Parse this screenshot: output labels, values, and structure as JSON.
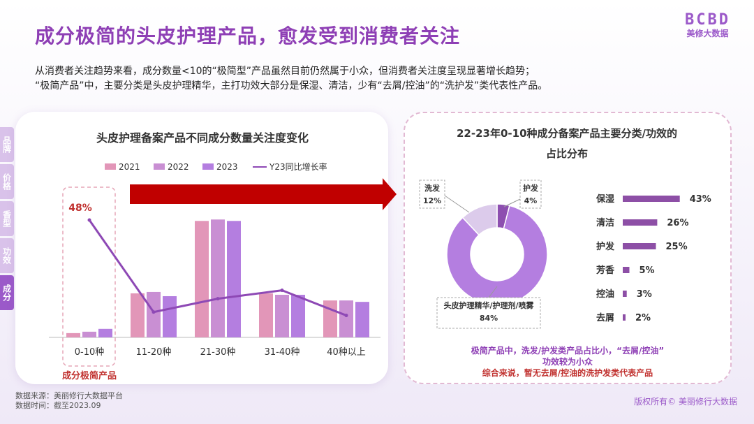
{
  "title": "成分极简的头皮护理产品，愈发受到消费者关注",
  "logo": {
    "mark": "BCBD",
    "sub": "美修大数据"
  },
  "intro": {
    "line1": "从消费者关注趋势来看，成分数量<10的“极简型”产品虽然目前仍然属于小众，但消费者关注度呈现显著增长趋势；",
    "line2": "“极简产品”中，主要分类是头皮护理精华，主打功效大部分是保湿、清洁，少有“去屑/控油”的“洗护发”类代表性产品。"
  },
  "side_tabs": [
    "品牌",
    "价格",
    "香型",
    "功效",
    "成分"
  ],
  "footer": {
    "source": "数据来源：美丽修行大数据平台",
    "time": "数据时间：截至2023.09",
    "copyright": "版权所有© 美丽修行大数据"
  },
  "colors": {
    "y2021": "#e296b8",
    "y2022": "#c98fd3",
    "y2023": "#b47ee0",
    "line": "#8e49b5",
    "arrow": "#c00000",
    "accent": "#8e3fb5"
  },
  "chart_data": [
    {
      "type": "bar",
      "title": "头皮护理备案产品不同成分数量关注度变化",
      "categories": [
        "0-10种",
        "11-20种",
        "21-30种",
        "31-40种",
        "40种以上"
      ],
      "series": [
        {
          "name": "2021",
          "values": [
            3,
            31,
            82,
            31,
            26
          ]
        },
        {
          "name": "2022",
          "values": [
            4,
            32,
            83,
            30,
            26
          ]
        },
        {
          "name": "2023",
          "values": [
            6,
            29,
            82,
            30,
            25
          ]
        }
      ],
      "line_series": {
        "name": "Y23同比增长率",
        "values": [
          48,
          -7,
          1,
          6,
          -9
        ],
        "labels": [
          "48%",
          "",
          "",
          "",
          ""
        ]
      },
      "highlight": {
        "category": "0-10种",
        "label": "成分极简产品"
      },
      "ylim": [
        0,
        90
      ],
      "legend": "top"
    },
    {
      "type": "pie",
      "title_line1": "22-23年0-10种成分备案产品主要分类/功效的",
      "title_line2": "占比分布",
      "slices": [
        {
          "name": "护发",
          "value": 4,
          "label": "4%"
        },
        {
          "name": "头皮护理精华/护理剂/喷雾",
          "value": 84,
          "label": "84%"
        },
        {
          "name": "洗发",
          "value": 12,
          "label": "12%"
        }
      ]
    },
    {
      "type": "bar",
      "orientation": "horizontal",
      "categories": [
        "保湿",
        "清洁",
        "护发",
        "芳香",
        "控油",
        "去屑"
      ],
      "values": [
        43,
        26,
        25,
        5,
        3,
        2
      ],
      "labels": [
        "43%",
        "26%",
        "25%",
        "5%",
        "3%",
        "2%"
      ],
      "xlim": [
        0,
        50
      ]
    }
  ],
  "note": {
    "line1": "极简产品中，洗发/护发类产品占比小，“去屑/控油”",
    "line2": "功效较为小众",
    "line3": "综合来说，暂无去屑/控油的洗护发类代表产品"
  }
}
